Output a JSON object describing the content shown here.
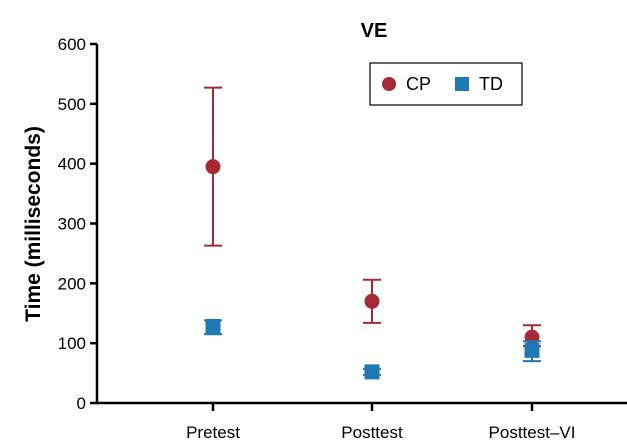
{
  "chart_data": {
    "type": "scatter",
    "title": "VE",
    "ylabel": "Time (milliseconds)",
    "xlabel": "",
    "categories": [
      "Pretest",
      "Posttest",
      "Posttest–VI"
    ],
    "ylim": [
      0,
      600
    ],
    "yticks": [
      0,
      100,
      200,
      300,
      400,
      500,
      600
    ],
    "grid": false,
    "legend_position": "top-right",
    "series": [
      {
        "name": "CP",
        "marker": "circle",
        "color": "#a52a35",
        "values": [
          395,
          170,
          110
        ],
        "err_low": [
          263,
          134,
          95
        ],
        "err_high": [
          527,
          206,
          130
        ]
      },
      {
        "name": "TD",
        "marker": "square",
        "color": "#1f78b4",
        "values": [
          128,
          52,
          88
        ],
        "err_low": [
          115,
          47,
          70
        ],
        "err_high": [
          138,
          57,
          103
        ]
      }
    ]
  }
}
